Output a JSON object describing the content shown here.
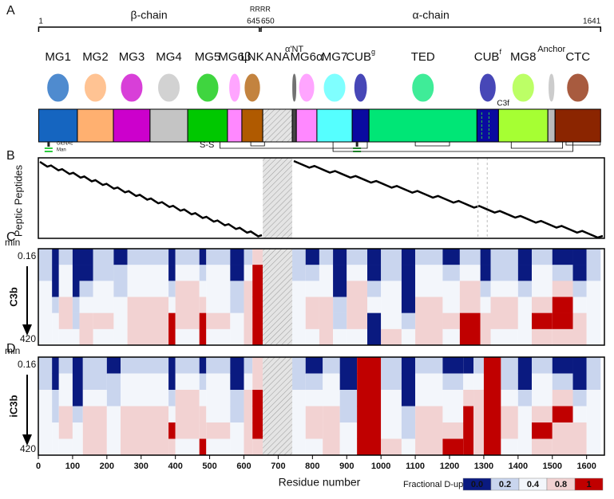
{
  "panels": [
    "A",
    "B",
    "C",
    "D"
  ],
  "xlim": [
    0,
    1652
  ],
  "xticks": [
    0,
    100,
    200,
    300,
    400,
    500,
    600,
    700,
    800,
    900,
    1000,
    1100,
    1200,
    1300,
    1400,
    1500,
    1600
  ],
  "x_label": "Residue number",
  "chains": [
    {
      "label": "β-chain",
      "start": 1,
      "end": 645
    },
    {
      "label": "α-chain",
      "start": 650,
      "end": 1641
    }
  ],
  "residue_markers": [
    {
      "value": 1,
      "label": "1"
    },
    {
      "value": 645,
      "label": "645"
    },
    {
      "value": 650,
      "label": "650"
    },
    {
      "value": 1641,
      "label": "1641"
    }
  ],
  "cleavage_label": "RRRR",
  "domains": [
    {
      "label": "MG1",
      "start": 1,
      "end": 114,
      "color": "#1565c0"
    },
    {
      "label": "MG2",
      "start": 114,
      "end": 219,
      "color": "#ffb070"
    },
    {
      "label": "MG3",
      "start": 219,
      "end": 326,
      "color": "#cc00cc"
    },
    {
      "label": "MG4",
      "start": 326,
      "end": 436,
      "color": "#c4c4c4"
    },
    {
      "label": "MG5",
      "start": 436,
      "end": 552,
      "color": "#00c800"
    },
    {
      "label": "MG6β",
      "start": 552,
      "end": 594,
      "color": "#ff88ff"
    },
    {
      "label": "LNK",
      "start": 594,
      "end": 655,
      "color": "#b05a00"
    },
    {
      "label": "ANA",
      "start": 655,
      "end": 741,
      "color": "#e0e0e0",
      "hatched": true
    },
    {
      "label": "α'NT",
      "start": 741,
      "end": 753,
      "color": "#444444"
    },
    {
      "label": "MG6α",
      "start": 753,
      "end": 813,
      "color": "#ff88ff"
    },
    {
      "label": "MG7",
      "start": 813,
      "end": 916,
      "color": "#55ffff"
    },
    {
      "label": "CUB",
      "sup": "g",
      "start": 916,
      "end": 965,
      "color": "#0a0aa0"
    },
    {
      "label": "TED",
      "start": 965,
      "end": 1280,
      "color": "#00e676"
    },
    {
      "label": "CUB",
      "sup": "f",
      "start": 1280,
      "end": 1343,
      "color": "#0a0aa0"
    },
    {
      "label": "MG8",
      "start": 1343,
      "end": 1487,
      "color": "#a6ff33"
    },
    {
      "label": "Anchor",
      "start": 1487,
      "end": 1508,
      "color": "#bbbbbb"
    },
    {
      "label": "CTC",
      "start": 1508,
      "end": 1641,
      "color": "#8b2500"
    }
  ],
  "c3f_label": "C3f",
  "glycan_labels": [
    "GlcNAc",
    "Man"
  ],
  "disulfide_label": "S-S",
  "peptides_label": "Peptic  Peptides",
  "legend": {
    "title": "Fractional  D-uptake",
    "entries": [
      {
        "value": 0,
        "label": "0.0",
        "color": "#0a1a80"
      },
      {
        "value": 0.2,
        "label": "0.2",
        "color": "#c9d5ee"
      },
      {
        "value": 0.4,
        "label": "0.4",
        "color": "#f3f6fb"
      },
      {
        "value": 0.8,
        "label": "0.8",
        "color": "#f2d2d2"
      },
      {
        "value": 1,
        "label": "1",
        "color": "#c00000"
      }
    ]
  },
  "heatmaps": [
    {
      "name": "C3b",
      "time_unit": "min",
      "first_time": "0.16",
      "last_time": "420",
      "segments": [
        {
          "start": 1,
          "end": 40,
          "uptake": [
            0.2,
            0.2,
            0.4,
            0.4,
            0.4,
            0.4
          ]
        },
        {
          "start": 40,
          "end": 60,
          "uptake": [
            0,
            0,
            0,
            0.2,
            0.4,
            0.4
          ]
        },
        {
          "start": 60,
          "end": 100,
          "uptake": [
            0.2,
            0.4,
            0.4,
            0.8,
            0.8,
            0.4
          ]
        },
        {
          "start": 100,
          "end": 120,
          "uptake": [
            0,
            0,
            0,
            0.2,
            0.2,
            0.4
          ]
        },
        {
          "start": 120,
          "end": 160,
          "uptake": [
            0,
            0,
            0.2,
            0.4,
            0.8,
            0.8
          ]
        },
        {
          "start": 160,
          "end": 220,
          "uptake": [
            0.2,
            0.2,
            0.4,
            0.4,
            0.8,
            0.4
          ]
        },
        {
          "start": 220,
          "end": 260,
          "uptake": [
            0,
            0.2,
            0.2,
            0.4,
            0.4,
            0.4
          ]
        },
        {
          "start": 260,
          "end": 380,
          "uptake": [
            0.2,
            0.4,
            0.4,
            0.8,
            0.8,
            0.8
          ]
        },
        {
          "start": 380,
          "end": 400,
          "uptake": [
            0,
            0,
            0.2,
            0.4,
            1,
            1
          ]
        },
        {
          "start": 400,
          "end": 470,
          "uptake": [
            0.2,
            0.4,
            0.8,
            0.8,
            0.8,
            0.4
          ]
        },
        {
          "start": 470,
          "end": 490,
          "uptake": [
            0,
            0.2,
            0.4,
            0.8,
            1,
            1
          ]
        },
        {
          "start": 490,
          "end": 560,
          "uptake": [
            0.2,
            0.4,
            0.4,
            0.4,
            0.8,
            0.4
          ]
        },
        {
          "start": 560,
          "end": 600,
          "uptake": [
            0,
            0,
            0.2,
            0.2,
            0.4,
            0.4
          ]
        },
        {
          "start": 600,
          "end": 625,
          "uptake": [
            0.2,
            0.4,
            0.8,
            0.8,
            0.8,
            0.8
          ]
        },
        {
          "start": 625,
          "end": 655,
          "uptake": [
            0.8,
            1,
            1,
            1,
            1,
            1
          ]
        },
        {
          "start": 741,
          "end": 780,
          "uptake": [
            0.2,
            0.2,
            0.4,
            0.4,
            0.4,
            0.4
          ]
        },
        {
          "start": 780,
          "end": 820,
          "uptake": [
            0,
            0.2,
            0.4,
            0.8,
            0.8,
            0.4
          ]
        },
        {
          "start": 820,
          "end": 860,
          "uptake": [
            0.2,
            0.4,
            0.4,
            0.8,
            0.8,
            0.8
          ]
        },
        {
          "start": 860,
          "end": 900,
          "uptake": [
            0,
            0,
            0,
            0.2,
            0.2,
            0.4
          ]
        },
        {
          "start": 900,
          "end": 960,
          "uptake": [
            0.2,
            0.4,
            0.8,
            0.8,
            0.8,
            0.4
          ]
        },
        {
          "start": 960,
          "end": 1000,
          "uptake": [
            0,
            0,
            0.2,
            0.4,
            0,
            0
          ]
        },
        {
          "start": 1000,
          "end": 1060,
          "uptake": [
            0.2,
            0.2,
            0.4,
            0.4,
            0.4,
            0.8
          ]
        },
        {
          "start": 1060,
          "end": 1100,
          "uptake": [
            0,
            0,
            0,
            0,
            0.2,
            0.4
          ]
        },
        {
          "start": 1100,
          "end": 1180,
          "uptake": [
            0.2,
            0.4,
            0.4,
            0.8,
            0.8,
            0.8
          ]
        },
        {
          "start": 1180,
          "end": 1230,
          "uptake": [
            0,
            0.2,
            0.4,
            0.4,
            0.8,
            0.4
          ]
        },
        {
          "start": 1230,
          "end": 1290,
          "uptake": [
            0.2,
            0.4,
            0.8,
            0.8,
            1,
            1
          ]
        },
        {
          "start": 1290,
          "end": 1320,
          "uptake": [
            0,
            0,
            0.2,
            0.4,
            0.8,
            0.8
          ]
        },
        {
          "start": 1320,
          "end": 1400,
          "uptake": [
            0.2,
            0.2,
            0.4,
            0.8,
            0.8,
            0.4
          ]
        },
        {
          "start": 1400,
          "end": 1440,
          "uptake": [
            0,
            0,
            0.2,
            0.4,
            0.4,
            0.4
          ]
        },
        {
          "start": 1440,
          "end": 1500,
          "uptake": [
            0.2,
            0.4,
            0.4,
            0.8,
            1,
            0.8
          ]
        },
        {
          "start": 1500,
          "end": 1560,
          "uptake": [
            0,
            0.2,
            0.8,
            1,
            1,
            0.8
          ]
        },
        {
          "start": 1560,
          "end": 1600,
          "uptake": [
            0,
            0,
            0.2,
            0.4,
            0.8,
            0.8
          ]
        },
        {
          "start": 1600,
          "end": 1641,
          "uptake": [
            0.2,
            0.2,
            0.4,
            0.4,
            0.4,
            0.4
          ]
        }
      ]
    },
    {
      "name": "iC3b",
      "time_unit": "min",
      "first_time": "0.16",
      "last_time": "420",
      "segments": [
        {
          "start": 1,
          "end": 40,
          "uptake": [
            0.2,
            0.2,
            0.4,
            0.4,
            0.4,
            0.4
          ]
        },
        {
          "start": 40,
          "end": 60,
          "uptake": [
            0,
            0,
            0.2,
            0.2,
            0.4,
            0.4
          ]
        },
        {
          "start": 60,
          "end": 100,
          "uptake": [
            0.2,
            0.4,
            0.4,
            0.8,
            0.8,
            0.4
          ]
        },
        {
          "start": 100,
          "end": 130,
          "uptake": [
            0,
            0,
            0,
            0.2,
            0.4,
            0.4
          ]
        },
        {
          "start": 130,
          "end": 200,
          "uptake": [
            0.2,
            0.2,
            0.4,
            0.8,
            0.8,
            0.8
          ]
        },
        {
          "start": 200,
          "end": 240,
          "uptake": [
            0,
            0.2,
            0.2,
            0.4,
            0.4,
            0.4
          ]
        },
        {
          "start": 240,
          "end": 380,
          "uptake": [
            0.2,
            0.4,
            0.4,
            0.8,
            0.8,
            0.8
          ]
        },
        {
          "start": 380,
          "end": 400,
          "uptake": [
            0,
            0,
            0.2,
            0.4,
            1,
            0.8
          ]
        },
        {
          "start": 400,
          "end": 470,
          "uptake": [
            0.2,
            0.4,
            0.8,
            0.8,
            0.8,
            0.4
          ]
        },
        {
          "start": 470,
          "end": 490,
          "uptake": [
            0,
            0.2,
            0.4,
            0.8,
            0.8,
            1
          ]
        },
        {
          "start": 490,
          "end": 560,
          "uptake": [
            0.2,
            0.4,
            0.4,
            0.4,
            0.8,
            0.4
          ]
        },
        {
          "start": 560,
          "end": 600,
          "uptake": [
            0,
            0,
            0.2,
            0.2,
            0.4,
            0.4
          ]
        },
        {
          "start": 600,
          "end": 625,
          "uptake": [
            0.2,
            0.4,
            0.8,
            0.8,
            0.8,
            0.8
          ]
        },
        {
          "start": 625,
          "end": 655,
          "uptake": [
            0.8,
            0.8,
            1,
            1,
            1,
            0.8
          ]
        },
        {
          "start": 741,
          "end": 780,
          "uptake": [
            0.2,
            0.2,
            0.4,
            0.4,
            0.4,
            0.4
          ]
        },
        {
          "start": 780,
          "end": 830,
          "uptake": [
            0,
            0.2,
            0.4,
            0.8,
            0.8,
            0.4
          ]
        },
        {
          "start": 830,
          "end": 880,
          "uptake": [
            0.2,
            0.4,
            0.4,
            0.8,
            0.8,
            0.8
          ]
        },
        {
          "start": 880,
          "end": 930,
          "uptake": [
            0,
            0,
            0.2,
            0.2,
            0.4,
            0.4
          ]
        },
        {
          "start": 930,
          "end": 1000,
          "uptake": [
            1,
            1,
            1,
            1,
            1,
            1
          ]
        },
        {
          "start": 1000,
          "end": 1060,
          "uptake": [
            0.2,
            0.2,
            0.4,
            0.4,
            0.4,
            0.8
          ]
        },
        {
          "start": 1060,
          "end": 1100,
          "uptake": [
            0,
            0,
            0,
            0.2,
            0.2,
            0.4
          ]
        },
        {
          "start": 1100,
          "end": 1180,
          "uptake": [
            0.2,
            0.4,
            0.4,
            0.8,
            0.8,
            0.8
          ]
        },
        {
          "start": 1180,
          "end": 1240,
          "uptake": [
            0,
            0.2,
            0.4,
            0.4,
            0.8,
            1
          ]
        },
        {
          "start": 1240,
          "end": 1270,
          "uptake": [
            0,
            0.4,
            0.8,
            1,
            1,
            1
          ]
        },
        {
          "start": 1270,
          "end": 1300,
          "uptake": [
            0.2,
            0.4,
            0.8,
            0.8,
            0.8,
            0.8
          ]
        },
        {
          "start": 1300,
          "end": 1350,
          "uptake": [
            1,
            1,
            1,
            1,
            1,
            1
          ]
        },
        {
          "start": 1350,
          "end": 1400,
          "uptake": [
            0.2,
            0.2,
            0.4,
            0.8,
            0.8,
            0.4
          ]
        },
        {
          "start": 1400,
          "end": 1440,
          "uptake": [
            0,
            0,
            0.2,
            0.4,
            0.4,
            0.4
          ]
        },
        {
          "start": 1440,
          "end": 1500,
          "uptake": [
            0.2,
            0.4,
            0.4,
            0.8,
            1,
            0.8
          ]
        },
        {
          "start": 1500,
          "end": 1560,
          "uptake": [
            0,
            0.2,
            0.8,
            1,
            0.8,
            0.8
          ]
        },
        {
          "start": 1560,
          "end": 1600,
          "uptake": [
            0,
            0,
            0.2,
            0.4,
            0.8,
            0.8
          ]
        },
        {
          "start": 1600,
          "end": 1641,
          "uptake": [
            0.2,
            0.2,
            0.4,
            0.4,
            0.4,
            0.4
          ]
        }
      ]
    }
  ]
}
